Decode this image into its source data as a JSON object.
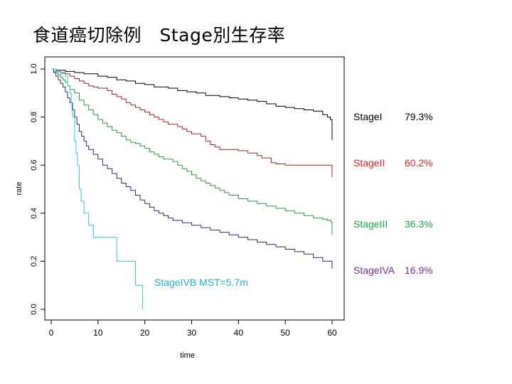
{
  "slide": {
    "title": "食道癌切除例　Stage別生存率"
  },
  "chart_data": {
    "type": "line",
    "step": true,
    "xlabel": "time",
    "ylabel": "rate",
    "xlim": [
      0,
      62
    ],
    "ylim": [
      0,
      1.0
    ],
    "xticks": [
      "0",
      "10",
      "20",
      "30",
      "40",
      "50",
      "60"
    ],
    "yticks": [
      "0.0",
      "0.2",
      "0.4",
      "0.6",
      "0.8",
      "1.0"
    ],
    "grid": false,
    "series": [
      {
        "name": "StageI",
        "label": "StageI",
        "value_label": "79.3%",
        "color": "#000000",
        "label_color": "#000000",
        "points": [
          [
            0,
            1.0
          ],
          [
            1,
            0.995
          ],
          [
            3,
            0.99
          ],
          [
            5,
            0.985
          ],
          [
            7,
            0.98
          ],
          [
            10,
            0.97
          ],
          [
            12,
            0.965
          ],
          [
            14,
            0.955
          ],
          [
            16,
            0.95
          ],
          [
            18,
            0.94
          ],
          [
            20,
            0.935
          ],
          [
            22,
            0.925
          ],
          [
            25,
            0.92
          ],
          [
            27,
            0.91
          ],
          [
            29,
            0.905
          ],
          [
            31,
            0.9
          ],
          [
            33,
            0.89
          ],
          [
            36,
            0.885
          ],
          [
            38,
            0.88
          ],
          [
            40,
            0.875
          ],
          [
            42,
            0.87
          ],
          [
            44,
            0.865
          ],
          [
            46,
            0.855
          ],
          [
            48,
            0.845
          ],
          [
            50,
            0.84
          ],
          [
            52,
            0.835
          ],
          [
            54,
            0.83
          ],
          [
            56,
            0.825
          ],
          [
            58,
            0.81
          ],
          [
            59,
            0.8
          ],
          [
            59.6,
            0.79
          ],
          [
            60,
            0.705
          ]
        ]
      },
      {
        "name": "StageII",
        "label": "StageII",
        "value_label": "60.2%",
        "color": "#a02828",
        "label_color": "#e0242b",
        "points": [
          [
            0,
            1.0
          ],
          [
            1,
            0.99
          ],
          [
            2,
            0.985
          ],
          [
            3,
            0.98
          ],
          [
            4,
            0.97
          ],
          [
            5,
            0.96
          ],
          [
            6,
            0.95
          ],
          [
            7,
            0.94
          ],
          [
            8,
            0.93
          ],
          [
            9,
            0.925
          ],
          [
            10,
            0.92
          ],
          [
            12,
            0.91
          ],
          [
            13,
            0.895
          ],
          [
            14,
            0.885
          ],
          [
            15,
            0.875
          ],
          [
            16,
            0.86
          ],
          [
            17,
            0.85
          ],
          [
            18,
            0.84
          ],
          [
            19,
            0.83
          ],
          [
            20,
            0.82
          ],
          [
            21,
            0.81
          ],
          [
            22,
            0.8
          ],
          [
            23,
            0.79
          ],
          [
            24,
            0.78
          ],
          [
            25,
            0.77
          ],
          [
            27,
            0.76
          ],
          [
            28,
            0.75
          ],
          [
            29,
            0.74
          ],
          [
            30,
            0.73
          ],
          [
            32,
            0.72
          ],
          [
            33,
            0.7
          ],
          [
            34,
            0.685
          ],
          [
            35,
            0.675
          ],
          [
            36,
            0.665
          ],
          [
            40,
            0.66
          ],
          [
            42,
            0.65
          ],
          [
            44,
            0.64
          ],
          [
            45,
            0.63
          ],
          [
            47,
            0.61
          ],
          [
            48,
            0.605
          ],
          [
            50,
            0.6
          ],
          [
            60,
            0.55
          ]
        ]
      },
      {
        "name": "StageIII",
        "label": "StageIII",
        "value_label": "36.3%",
        "color": "#2e9e3e",
        "label_color": "#1eaa4a",
        "points": [
          [
            0,
            1.0
          ],
          [
            0.5,
            0.99
          ],
          [
            1,
            0.985
          ],
          [
            1.5,
            0.975
          ],
          [
            2,
            0.965
          ],
          [
            2.5,
            0.955
          ],
          [
            3,
            0.945
          ],
          [
            3.5,
            0.93
          ],
          [
            4,
            0.915
          ],
          [
            5,
            0.9
          ],
          [
            6,
            0.87
          ],
          [
            7,
            0.85
          ],
          [
            8,
            0.83
          ],
          [
            9,
            0.81
          ],
          [
            10,
            0.79
          ],
          [
            11,
            0.775
          ],
          [
            12,
            0.76
          ],
          [
            13,
            0.745
          ],
          [
            14,
            0.735
          ],
          [
            15,
            0.72
          ],
          [
            16,
            0.705
          ],
          [
            17,
            0.695
          ],
          [
            18,
            0.69
          ],
          [
            19,
            0.68
          ],
          [
            20,
            0.67
          ],
          [
            21,
            0.655
          ],
          [
            22,
            0.645
          ],
          [
            23,
            0.635
          ],
          [
            24,
            0.625
          ],
          [
            26,
            0.615
          ],
          [
            27,
            0.6
          ],
          [
            28,
            0.585
          ],
          [
            29,
            0.575
          ],
          [
            30,
            0.56
          ],
          [
            31,
            0.545
          ],
          [
            32,
            0.535
          ],
          [
            33,
            0.525
          ],
          [
            34,
            0.515
          ],
          [
            35,
            0.505
          ],
          [
            36,
            0.495
          ],
          [
            37,
            0.485
          ],
          [
            38,
            0.475
          ],
          [
            40,
            0.46
          ],
          [
            42,
            0.45
          ],
          [
            44,
            0.44
          ],
          [
            46,
            0.43
          ],
          [
            48,
            0.42
          ],
          [
            50,
            0.41
          ],
          [
            52,
            0.4
          ],
          [
            54,
            0.39
          ],
          [
            56,
            0.38
          ],
          [
            58,
            0.375
          ],
          [
            59,
            0.37
          ],
          [
            59.8,
            0.363
          ],
          [
            60,
            0.31
          ]
        ]
      },
      {
        "name": "StageIVA",
        "label": "StageIVA",
        "value_label": "16.9%",
        "color": "#2d2f7a",
        "label_color": "#7030a0",
        "points": [
          [
            0,
            1.0
          ],
          [
            0.5,
            0.985
          ],
          [
            1,
            0.97
          ],
          [
            1.5,
            0.955
          ],
          [
            2,
            0.94
          ],
          [
            2.5,
            0.925
          ],
          [
            3,
            0.905
          ],
          [
            3.5,
            0.88
          ],
          [
            4,
            0.86
          ],
          [
            4.5,
            0.83
          ],
          [
            5,
            0.8
          ],
          [
            5.5,
            0.77
          ],
          [
            6,
            0.74
          ],
          [
            6.5,
            0.72
          ],
          [
            7,
            0.7
          ],
          [
            7.5,
            0.68
          ],
          [
            8,
            0.665
          ],
          [
            9,
            0.645
          ],
          [
            10,
            0.625
          ],
          [
            11,
            0.6
          ],
          [
            12,
            0.585
          ],
          [
            13,
            0.565
          ],
          [
            14,
            0.545
          ],
          [
            15,
            0.525
          ],
          [
            16,
            0.51
          ],
          [
            17,
            0.495
          ],
          [
            18,
            0.475
          ],
          [
            19,
            0.455
          ],
          [
            20,
            0.44
          ],
          [
            21,
            0.425
          ],
          [
            22,
            0.41
          ],
          [
            23,
            0.4
          ],
          [
            24,
            0.39
          ],
          [
            25,
            0.38
          ],
          [
            26,
            0.37
          ],
          [
            28,
            0.36
          ],
          [
            30,
            0.35
          ],
          [
            32,
            0.34
          ],
          [
            34,
            0.33
          ],
          [
            36,
            0.32
          ],
          [
            38,
            0.31
          ],
          [
            40,
            0.3
          ],
          [
            42,
            0.29
          ],
          [
            44,
            0.28
          ],
          [
            46,
            0.27
          ],
          [
            48,
            0.26
          ],
          [
            50,
            0.25
          ],
          [
            52,
            0.24
          ],
          [
            54,
            0.23
          ],
          [
            56,
            0.215
          ],
          [
            58,
            0.2
          ],
          [
            60,
            0.169
          ]
        ]
      },
      {
        "name": "StageIVB",
        "label": "StageIVB  MST=5.7m",
        "value_label": "",
        "color": "#39c8d6",
        "label_color": "#1fb0d8",
        "points": [
          [
            0,
            1.0
          ],
          [
            1,
            0.99
          ],
          [
            2,
            0.98
          ],
          [
            3,
            0.97
          ],
          [
            3.5,
            0.93
          ],
          [
            4,
            0.9
          ],
          [
            4.3,
            0.86
          ],
          [
            4.6,
            0.8
          ],
          [
            5,
            0.7
          ],
          [
            5.3,
            0.65
          ],
          [
            5.6,
            0.6
          ],
          [
            6,
            0.5
          ],
          [
            6.4,
            0.45
          ],
          [
            7,
            0.4
          ],
          [
            8,
            0.35
          ],
          [
            9,
            0.3
          ],
          [
            11,
            0.3
          ],
          [
            14,
            0.2
          ],
          [
            16,
            0.2
          ],
          [
            18,
            0.1
          ],
          [
            19,
            0.1
          ],
          [
            19.5,
            0.0
          ]
        ]
      }
    ]
  }
}
